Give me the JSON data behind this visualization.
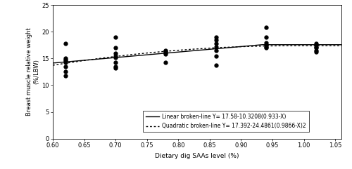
{
  "scatter_data": {
    "x": [
      0.62,
      0.62,
      0.62,
      0.62,
      0.62,
      0.62,
      0.62,
      0.62,
      0.7,
      0.7,
      0.7,
      0.7,
      0.7,
      0.7,
      0.7,
      0.7,
      0.78,
      0.78,
      0.78,
      0.78,
      0.78,
      0.86,
      0.86,
      0.86,
      0.86,
      0.86,
      0.86,
      0.86,
      0.94,
      0.94,
      0.94,
      0.94,
      0.94,
      0.94,
      1.02,
      1.02,
      1.02,
      1.02,
      1.02,
      1.02
    ],
    "y": [
      17.8,
      15.0,
      14.8,
      14.5,
      14.3,
      13.5,
      12.5,
      11.8,
      19.0,
      17.0,
      16.0,
      15.5,
      15.2,
      14.2,
      13.5,
      13.2,
      16.5,
      16.3,
      16.1,
      15.9,
      14.3,
      19.0,
      18.5,
      17.8,
      17.2,
      16.5,
      15.5,
      13.8,
      20.8,
      19.0,
      18.0,
      17.5,
      17.2,
      17.0,
      17.8,
      17.5,
      17.2,
      17.0,
      16.5,
      16.2
    ]
  },
  "linear_params": {
    "plateau": 17.58,
    "slope": 10.3208,
    "breakpoint": 0.933
  },
  "quadratic_params": {
    "plateau": 17.392,
    "coeff": 24.4861,
    "breakpoint": 0.9866
  },
  "xlim": [
    0.6,
    1.06
  ],
  "ylim": [
    0,
    25
  ],
  "xticks": [
    0.6,
    0.65,
    0.7,
    0.75,
    0.8,
    0.85,
    0.9,
    0.95,
    1.0,
    1.05
  ],
  "yticks": [
    0,
    5,
    10,
    15,
    20,
    25
  ],
  "xlabel": "Dietary dig SAAs level (%)",
  "ylabel": "Breast muscle relative weight\n(%/LBW)",
  "legend_linear": "Linear broken-line Y= 17.58-10.3208(0.933-X)",
  "legend_quadratic": "Quadratic broken-line Y= 17.392-24.4861(0.9866-X)2",
  "marker_color": "black",
  "marker_size": 3.5,
  "line_color": "black",
  "background_color": "white",
  "fig_width": 5.0,
  "fig_height": 2.41,
  "dpi": 100
}
